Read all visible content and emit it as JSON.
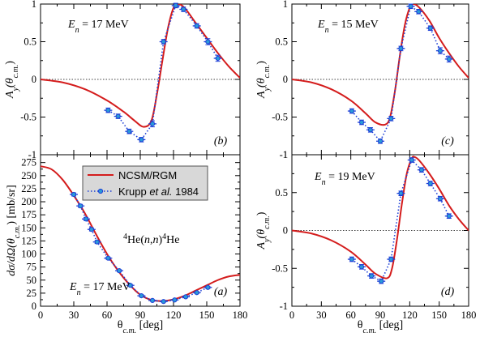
{
  "figure": {
    "xlabel_main": "θ",
    "xlabel_sub": "c.m.",
    "xlabel_unit": "[deg]",
    "legend": {
      "model": "NCSM/RGM",
      "exp_pre": "Krupp ",
      "exp_italic": "et al.",
      "exp_post": " 1984"
    },
    "colors": {
      "model": "#d41c1c",
      "exp_line": "#1d3fd6",
      "exp_marker": "#2a9ad8",
      "legend_bg": "#d8d8d8"
    }
  },
  "chart_data": [
    {
      "type": "line",
      "panel": "b",
      "panel_label": "(b)",
      "energy_label": "17 MeV",
      "ylabel": "A_y(θ_c.m.)",
      "xlim": [
        0,
        180
      ],
      "ylim": [
        -1,
        1
      ],
      "xticks": [
        0,
        30,
        60,
        90,
        120,
        150,
        180
      ],
      "yticks": [
        -1,
        -0.5,
        0,
        0.5,
        1
      ],
      "yticklabels": [
        "-1",
        "-0.5",
        "0",
        "0.5",
        "1"
      ],
      "series": [
        {
          "name": "NCSM/RGM",
          "style": "solid",
          "x": [
            0,
            20,
            40,
            60,
            75,
            85,
            93,
            100,
            105,
            110,
            115,
            120,
            124,
            130,
            140,
            150,
            160,
            170,
            180
          ],
          "y": [
            0,
            -0.04,
            -0.13,
            -0.28,
            -0.43,
            -0.55,
            -0.63,
            -0.55,
            -0.2,
            0.25,
            0.68,
            0.95,
            1.0,
            0.95,
            0.75,
            0.55,
            0.35,
            0.17,
            0.02
          ]
        },
        {
          "name": "Krupp et al. 1984",
          "style": "dotted-markers",
          "x": [
            61,
            70,
            80,
            91,
            101,
            111,
            122,
            129,
            141,
            151,
            160
          ],
          "y": [
            -0.41,
            -0.49,
            -0.69,
            -0.8,
            -0.59,
            0.5,
            0.98,
            0.93,
            0.71,
            0.5,
            0.28
          ],
          "err": [
            0.03,
            0.03,
            0.03,
            0.03,
            0.04,
            0.03,
            0.03,
            0.03,
            0.03,
            0.04,
            0.04
          ]
        }
      ]
    },
    {
      "type": "line",
      "panel": "c",
      "panel_label": "(c)",
      "energy_label": "15 MeV",
      "ylabel": "A_y(θ_c.m.)",
      "xlim": [
        0,
        180
      ],
      "ylim": [
        -1,
        1
      ],
      "xticks": [
        0,
        30,
        60,
        90,
        120,
        150,
        180
      ],
      "yticks": [
        -1,
        -0.5,
        0,
        0.5,
        1
      ],
      "yticklabels": [
        "-1",
        "-0.5",
        "0",
        "0.5",
        "1"
      ],
      "series": [
        {
          "name": "NCSM/RGM",
          "style": "solid",
          "x": [
            0,
            20,
            40,
            60,
            75,
            85,
            95,
            100,
            105,
            110,
            115,
            120,
            124,
            130,
            140,
            150,
            160,
            170,
            180
          ],
          "y": [
            0,
            -0.04,
            -0.13,
            -0.28,
            -0.45,
            -0.57,
            -0.6,
            -0.5,
            -0.15,
            0.32,
            0.72,
            0.95,
            1.0,
            0.95,
            0.78,
            0.55,
            0.35,
            0.17,
            0.02
          ]
        },
        {
          "name": "Krupp et al. 1984",
          "style": "dotted-markers",
          "x": [
            61,
            71,
            80,
            90,
            101,
            111,
            121,
            129,
            141,
            151,
            160
          ],
          "y": [
            -0.42,
            -0.57,
            -0.67,
            -0.82,
            -0.52,
            0.41,
            0.97,
            0.9,
            0.68,
            0.38,
            0.27
          ],
          "err": [
            0.03,
            0.03,
            0.03,
            0.03,
            0.03,
            0.03,
            0.03,
            0.03,
            0.03,
            0.04,
            0.04
          ]
        }
      ]
    },
    {
      "type": "line",
      "panel": "a",
      "panel_label": "(a)",
      "energy_label": "17 MeV",
      "reaction": "He(n,n)He",
      "ylabel": "dσ/dΩ(θ_c.m.) [mb/sr]",
      "xlim": [
        0,
        180
      ],
      "ylim": [
        0,
        290
      ],
      "xticks": [
        0,
        30,
        60,
        90,
        120,
        150,
        180
      ],
      "yticks": [
        0,
        25,
        50,
        75,
        100,
        125,
        150,
        175,
        200,
        225,
        250,
        275
      ],
      "yticklabels": [
        "0",
        "25",
        "50",
        "75",
        "100",
        "125",
        "150",
        "175",
        "200",
        "225",
        "250",
        "275"
      ],
      "series": [
        {
          "name": "NCSM/RGM",
          "style": "solid",
          "x": [
            0,
            10,
            20,
            30,
            40,
            50,
            60,
            70,
            80,
            90,
            100,
            110,
            120,
            130,
            140,
            150,
            160,
            170,
            180
          ],
          "y": [
            268,
            262,
            242,
            212,
            178,
            138,
            100,
            68,
            42,
            22,
            12,
            10,
            13,
            20,
            30,
            40,
            50,
            57,
            60
          ]
        },
        {
          "name": "Krupp et al. 1984",
          "style": "dotted-markers",
          "x": [
            30,
            36,
            41,
            46,
            51,
            61,
            71,
            81,
            91,
            101,
            111,
            121,
            131,
            141,
            151
          ],
          "y": [
            214,
            192,
            167,
            147,
            123,
            92,
            68,
            40,
            20,
            11,
            9,
            12,
            18,
            26,
            36
          ],
          "err": [
            3,
            3,
            3,
            3,
            3,
            2,
            2,
            2,
            2,
            1,
            1,
            1,
            1,
            2,
            2
          ]
        }
      ]
    },
    {
      "type": "line",
      "panel": "d",
      "panel_label": "(d)",
      "energy_label": "19 MeV",
      "ylabel": "A_y(θ_c.m.)",
      "xlim": [
        0,
        180
      ],
      "ylim": [
        -1,
        1
      ],
      "xticks": [
        0,
        30,
        60,
        90,
        120,
        150,
        180
      ],
      "yticks": [
        -1,
        -0.5,
        0,
        0.5,
        1
      ],
      "yticklabels": [
        "-1",
        "-0.5",
        "0",
        "0.5",
        "1"
      ],
      "series": [
        {
          "name": "NCSM/RGM",
          "style": "solid",
          "x": [
            0,
            20,
            40,
            60,
            75,
            85,
            97,
            102,
            107,
            112,
            117,
            122,
            125,
            130,
            140,
            150,
            160,
            170,
            180
          ],
          "y": [
            0,
            -0.04,
            -0.13,
            -0.28,
            -0.45,
            -0.57,
            -0.63,
            -0.5,
            -0.12,
            0.35,
            0.75,
            0.95,
            0.97,
            0.92,
            0.75,
            0.55,
            0.33,
            0.15,
            0.0
          ]
        },
        {
          "name": "Krupp et al. 1984",
          "style": "dotted-markers",
          "x": [
            61,
            71,
            81,
            91,
            101,
            111,
            122,
            132,
            141,
            151,
            160
          ],
          "y": [
            -0.38,
            -0.48,
            -0.6,
            -0.67,
            -0.38,
            0.49,
            0.93,
            0.8,
            0.62,
            0.42,
            0.19
          ],
          "err": [
            0.03,
            0.03,
            0.03,
            0.03,
            0.03,
            0.03,
            0.03,
            0.03,
            0.03,
            0.03,
            0.03
          ]
        }
      ]
    }
  ]
}
